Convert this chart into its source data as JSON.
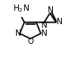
{
  "bg_color": "#ffffff",
  "line_color": "#000000",
  "line_width": 1.1,
  "font_size": 6.5,
  "fig_width": 0.88,
  "fig_height": 0.66,
  "dpi": 100,
  "xlim": [
    0,
    11
  ],
  "ylim": [
    0,
    9
  ]
}
